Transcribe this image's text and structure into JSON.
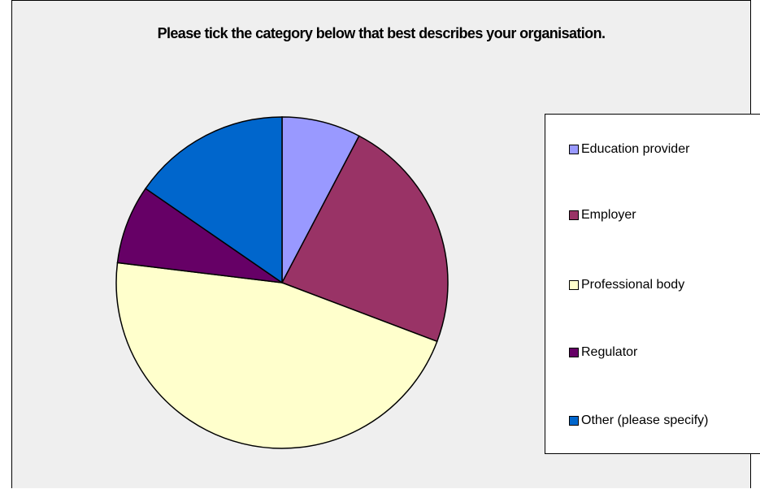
{
  "chart_data": {
    "type": "pie",
    "title": "Please tick the category below that best describes your organisation.",
    "categories": [
      "Education provider",
      "Employer",
      "Professional body",
      "Regulator",
      "Other (please specify)"
    ],
    "values": [
      7.7,
      23.1,
      46.2,
      7.7,
      15.4
    ],
    "colors": [
      "#9999ff",
      "#993366",
      "#ffffcc",
      "#660066",
      "#0066cc"
    ],
    "legend_position": "right",
    "start_angle": "12 o'clock",
    "direction": "clockwise"
  }
}
